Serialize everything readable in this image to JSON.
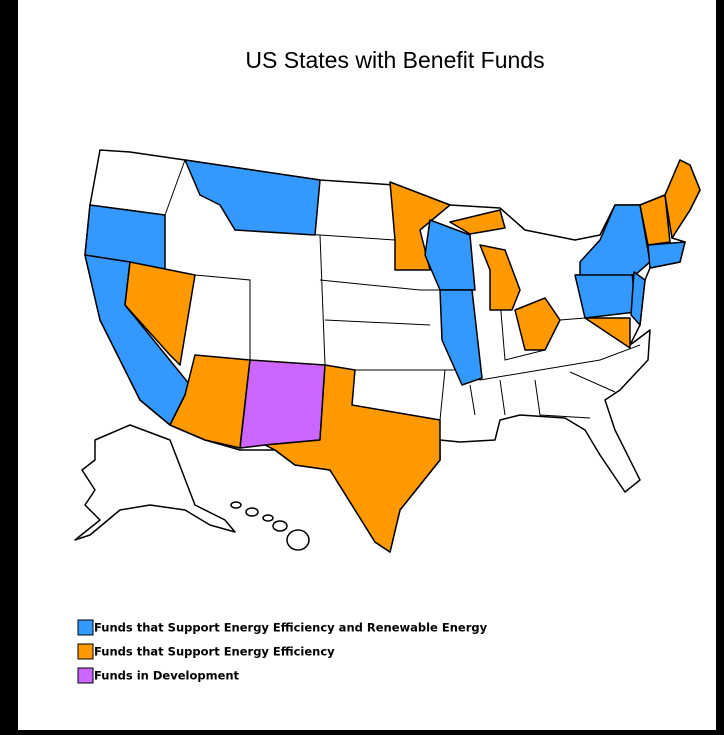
{
  "title": "US States with Benefit Funds",
  "legend": [
    {
      "label": "Funds that Support Energy Efficiency and Renewable Energy",
      "color": "#3399ff"
    },
    {
      "label": "Funds that Support Energy Efficiency",
      "color": "#ff9900"
    },
    {
      "label": "Funds in Development",
      "color": "#cc66ff"
    }
  ]
}
